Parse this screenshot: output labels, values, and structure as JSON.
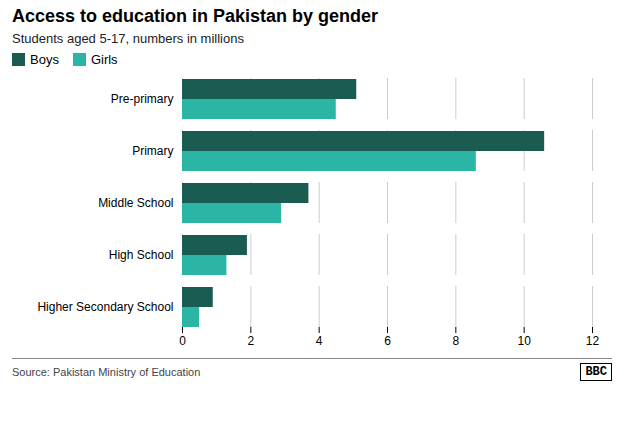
{
  "chart_data": {
    "type": "bar",
    "orientation": "horizontal",
    "title": "Access to education in Pakistan by gender",
    "subtitle": "Students aged 5-17, numbers in millions",
    "source": "Source: Pakistan Ministry of Education",
    "annotations": [
      "BBC"
    ],
    "categories": [
      "Pre-primary",
      "Primary",
      "Middle School",
      "High School",
      "Higher Secondary School"
    ],
    "series": [
      {
        "name": "Boys",
        "color": "#1a5c52",
        "values": [
          5.1,
          10.6,
          3.7,
          1.9,
          0.9
        ]
      },
      {
        "name": "Girls",
        "color": "#2ab5a5",
        "values": [
          4.5,
          8.6,
          2.9,
          1.3,
          0.5
        ]
      }
    ],
    "xlim": [
      0,
      12
    ],
    "xticks": [
      0,
      2,
      4,
      6,
      8,
      10,
      12
    ],
    "grid": true,
    "legend": "top"
  }
}
